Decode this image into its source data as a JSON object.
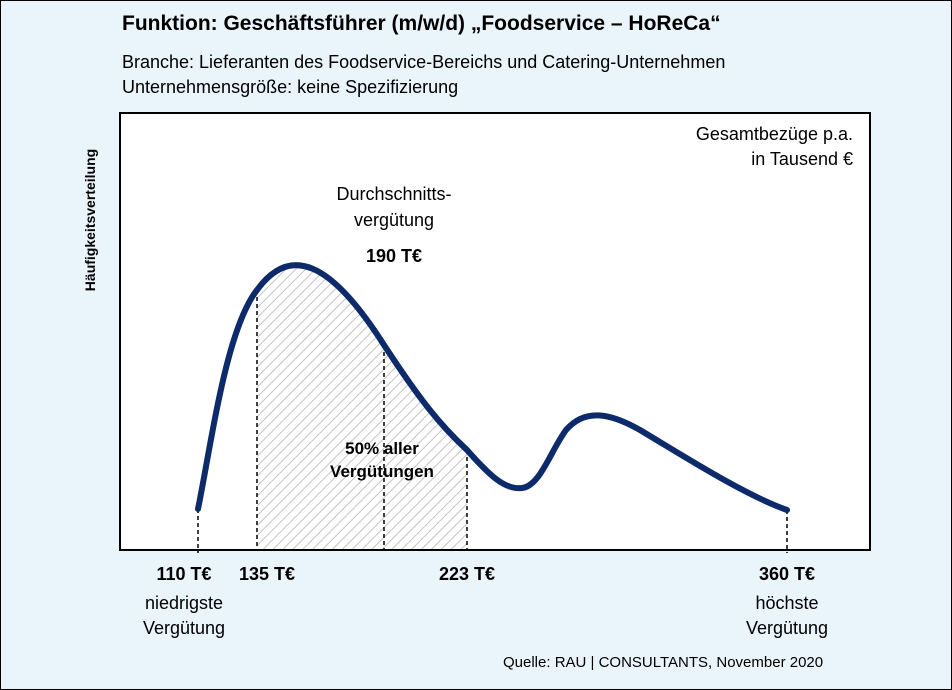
{
  "title": "Funktion: Geschäftsführer (m/w/d) „Foodservice – HoReCa“",
  "subtitle_1": "Branche: Lieferanten des Foodservice-Bereichs und Catering-Unternehmen",
  "subtitle_2": "Unternehmensgröße: keine Spezifizierung",
  "y_axis_label": "Häufigkeitsverteilung",
  "unit_note_1": "Gesamtbezüge p.a.",
  "unit_note_2": "in Tausend €",
  "average_label_1": "Durchschnitts-",
  "average_label_2": "vergütung",
  "average_value": "190 T€",
  "range_label_1": "50% aller",
  "range_label_2": "Vergütungen",
  "min_caption_1": "niedrigste",
  "min_caption_2": "Vergütung",
  "max_caption_1": "höchste",
  "max_caption_2": "Vergütung",
  "source": "Quelle: RAU | CONSULTANTS, November 2020",
  "colors": {
    "curve": "#0d2a6b",
    "background": "#eaf4fb",
    "plot": "#ffffff"
  },
  "chart_data": {
    "type": "area",
    "markers": [
      {
        "value": 110,
        "label": "110 T€",
        "role": "min"
      },
      {
        "value": 135,
        "label": "135 T€",
        "role": "q1"
      },
      {
        "value": 190,
        "label": "",
        "role": "average"
      },
      {
        "value": 223,
        "label": "223 T€",
        "role": "q3"
      },
      {
        "value": 360,
        "label": "360 T€",
        "role": "max"
      }
    ],
    "shaded_range": [
      135,
      223
    ],
    "x_range": [
      110,
      360
    ]
  }
}
